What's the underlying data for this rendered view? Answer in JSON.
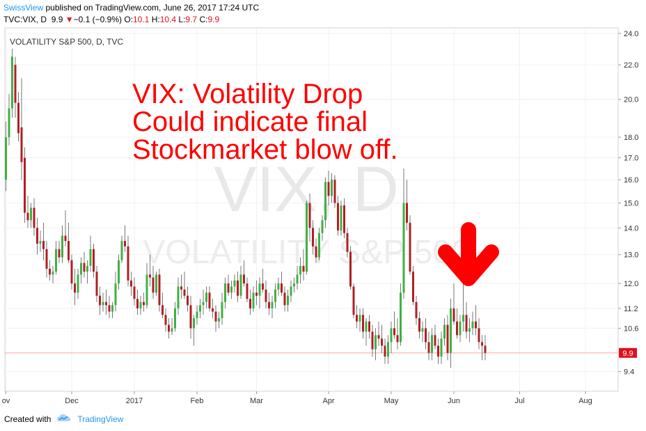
{
  "header": {
    "author": "SwissView",
    "published_text": " published on TradingView.com, June 26, 2017 17:24 UTC",
    "symbol": "TVC:VIX, D",
    "last": "9.9",
    "change": "−0.1 (−0.9%)",
    "o_label": "O:",
    "o_val": "10.1",
    "h_label": "H:",
    "h_val": "10.4",
    "l_label": "L:",
    "l_val": "9.7",
    "c_label": "C:",
    "c_val": "9.9"
  },
  "footer": {
    "created_with": "Created with",
    "brand": "TradingView"
  },
  "colors": {
    "up": "#3db142",
    "down": "#b11e24",
    "annotation": "#ff0000",
    "price_line": "#f4a7a7",
    "price_tag": "#e0111c"
  },
  "chart_data": {
    "type": "candlestick",
    "title": "VOLATILITY S&P 500, D, TVC",
    "watermark_symbol": "VIX, D",
    "watermark_name": "VOLATILITY S&P 500",
    "annotation": [
      "VIX: Volatility Drop",
      "Could indicate final",
      "Stockmarket blow off."
    ],
    "annotation_arrow": "down-arrow",
    "y_scale": "log",
    "ylim": [
      8.9,
      24.0
    ],
    "y_ticks": [
      "9.4",
      "10.6",
      "11.2",
      "12.0",
      "13.0",
      "14.0",
      "15.0",
      "16.0",
      "17.0",
      "18.0",
      "20.0",
      "22.0",
      "24.0"
    ],
    "x_labels": [
      {
        "label": "ov",
        "idx": 0
      },
      {
        "label": "Dec",
        "idx": 21
      },
      {
        "label": "2017",
        "idx": 41
      },
      {
        "label": "Feb",
        "idx": 61
      },
      {
        "label": "Mar",
        "idx": 80
      },
      {
        "label": "Apr",
        "idx": 103
      },
      {
        "label": "May",
        "idx": 123
      },
      {
        "label": "Jun",
        "idx": 143
      },
      {
        "label": "Jul",
        "idx": 164
      },
      {
        "label": "Aug",
        "idx": 185
      }
    ],
    "last_price": "9.9",
    "candles": [
      [
        16.0,
        18.8,
        15.5,
        18.0
      ],
      [
        18.0,
        20.3,
        17.6,
        19.5
      ],
      [
        19.5,
        23.0,
        19.0,
        22.5
      ],
      [
        22.0,
        22.5,
        19.0,
        19.8
      ],
      [
        19.8,
        20.4,
        17.8,
        18.2
      ],
      [
        18.5,
        21.2,
        16.0,
        16.8
      ],
      [
        17.0,
        17.5,
        14.2,
        14.6
      ],
      [
        14.6,
        15.3,
        14.0,
        14.3
      ],
      [
        14.3,
        15.0,
        14.0,
        14.8
      ],
      [
        14.8,
        15.2,
        13.7,
        14.0
      ],
      [
        14.0,
        14.4,
        13.0,
        13.4
      ],
      [
        13.4,
        13.9,
        13.1,
        13.5
      ],
      [
        13.5,
        14.2,
        12.8,
        13.2
      ],
      [
        13.2,
        13.5,
        12.2,
        12.5
      ],
      [
        12.5,
        12.8,
        12.1,
        12.3
      ],
      [
        12.3,
        12.6,
        12.0,
        12.4
      ],
      [
        12.4,
        13.5,
        12.3,
        13.2
      ],
      [
        13.2,
        13.5,
        12.7,
        12.9
      ],
      [
        12.9,
        14.1,
        12.7,
        13.7
      ],
      [
        13.7,
        14.7,
        13.3,
        13.5
      ],
      [
        13.5,
        14.2,
        12.7,
        12.8
      ],
      [
        12.8,
        13.0,
        11.8,
        12.0
      ],
      [
        12.0,
        12.5,
        11.3,
        11.7
      ],
      [
        11.7,
        12.5,
        11.5,
        12.3
      ],
      [
        12.3,
        12.9,
        12.0,
        12.7
      ],
      [
        12.7,
        13.1,
        12.2,
        12.4
      ],
      [
        12.4,
        12.8,
        12.0,
        12.6
      ],
      [
        12.6,
        13.7,
        12.4,
        13.2
      ],
      [
        13.2,
        13.4,
        12.2,
        12.4
      ],
      [
        12.4,
        12.6,
        11.4,
        11.6
      ],
      [
        11.6,
        11.9,
        11.0,
        11.3
      ],
      [
        11.3,
        11.7,
        11.1,
        11.4
      ],
      [
        11.4,
        11.8,
        11.0,
        11.3
      ],
      [
        11.3,
        11.6,
        10.9,
        11.1
      ],
      [
        11.1,
        11.4,
        10.9,
        11.3
      ],
      [
        11.3,
        12.4,
        11.1,
        12.0
      ],
      [
        12.0,
        13.0,
        11.8,
        12.8
      ],
      [
        12.8,
        13.7,
        12.7,
        13.5
      ],
      [
        13.5,
        14.1,
        13.1,
        13.3
      ],
      [
        13.3,
        13.7,
        11.9,
        12.1
      ],
      [
        12.1,
        12.4,
        11.6,
        11.9
      ],
      [
        11.9,
        12.2,
        11.3,
        11.5
      ],
      [
        11.5,
        11.8,
        11.0,
        11.2
      ],
      [
        11.2,
        11.6,
        11.0,
        11.4
      ],
      [
        11.4,
        11.7,
        11.1,
        11.3
      ],
      [
        11.3,
        12.7,
        11.2,
        12.3
      ],
      [
        12.3,
        13.0,
        11.9,
        12.2
      ],
      [
        12.2,
        12.6,
        11.5,
        11.7
      ],
      [
        11.7,
        12.4,
        11.6,
        12.3
      ],
      [
        12.3,
        12.5,
        11.1,
        11.3
      ],
      [
        11.3,
        11.7,
        10.9,
        11.0
      ],
      [
        11.0,
        11.2,
        10.5,
        10.7
      ],
      [
        10.7,
        10.9,
        10.3,
        10.5
      ],
      [
        10.5,
        10.9,
        10.4,
        10.6
      ],
      [
        10.6,
        11.4,
        10.5,
        11.2
      ],
      [
        11.2,
        12.2,
        11.0,
        11.9
      ],
      [
        11.9,
        12.3,
        11.5,
        11.8
      ],
      [
        11.8,
        12.4,
        11.5,
        11.6
      ],
      [
        11.6,
        11.9,
        11.1,
        11.3
      ],
      [
        11.3,
        11.6,
        10.3,
        10.6
      ],
      [
        10.6,
        11.0,
        10.1,
        10.9
      ],
      [
        10.9,
        11.3,
        10.7,
        11.1
      ],
      [
        11.1,
        11.5,
        10.9,
        11.3
      ],
      [
        11.3,
        11.8,
        11.0,
        11.4
      ],
      [
        11.4,
        11.9,
        11.2,
        11.7
      ],
      [
        11.7,
        11.9,
        11.1,
        11.2
      ],
      [
        11.2,
        11.5,
        10.9,
        11.1
      ],
      [
        11.1,
        11.3,
        10.5,
        10.8
      ],
      [
        10.8,
        11.1,
        10.6,
        10.9
      ],
      [
        10.9,
        11.7,
        10.7,
        11.4
      ],
      [
        11.4,
        12.2,
        11.2,
        12.0
      ],
      [
        12.0,
        12.3,
        11.6,
        11.7
      ],
      [
        11.7,
        12.1,
        11.5,
        11.9
      ],
      [
        11.9,
        12.3,
        11.7,
        12.1
      ],
      [
        12.1,
        12.4,
        11.4,
        11.6
      ],
      [
        11.6,
        12.6,
        11.5,
        12.3
      ],
      [
        12.3,
        12.8,
        11.9,
        12.0
      ],
      [
        12.0,
        12.2,
        11.4,
        11.5
      ],
      [
        11.5,
        11.8,
        11.0,
        11.2
      ],
      [
        11.2,
        11.9,
        11.1,
        11.7
      ],
      [
        11.7,
        12.1,
        11.3,
        11.6
      ],
      [
        11.6,
        12.2,
        11.2,
        12.0
      ],
      [
        12.0,
        12.5,
        11.7,
        11.8
      ],
      [
        11.8,
        12.1,
        11.2,
        11.4
      ],
      [
        11.4,
        11.7,
        11.0,
        11.2
      ],
      [
        11.2,
        11.6,
        10.9,
        11.4
      ],
      [
        11.4,
        12.0,
        11.2,
        11.8
      ],
      [
        11.8,
        12.2,
        11.6,
        12.0
      ],
      [
        12.0,
        12.4,
        11.6,
        11.7
      ],
      [
        11.7,
        11.9,
        11.1,
        11.3
      ],
      [
        11.3,
        11.8,
        11.1,
        11.6
      ],
      [
        11.6,
        12.1,
        11.4,
        11.9
      ],
      [
        11.9,
        12.2,
        11.7,
        12.0
      ],
      [
        12.0,
        12.6,
        11.8,
        12.3
      ],
      [
        12.3,
        12.9,
        12.0,
        12.6
      ],
      [
        12.6,
        13.2,
        12.1,
        12.4
      ],
      [
        12.4,
        15.1,
        12.3,
        15.0
      ],
      [
        15.0,
        15.4,
        13.5,
        14.0
      ],
      [
        14.0,
        14.3,
        13.0,
        13.3
      ],
      [
        13.3,
        13.6,
        12.7,
        12.9
      ],
      [
        12.9,
        14.0,
        12.8,
        13.8
      ],
      [
        13.8,
        14.5,
        13.5,
        14.3
      ],
      [
        14.3,
        16.1,
        14.0,
        15.9
      ],
      [
        15.9,
        16.4,
        14.9,
        15.3
      ],
      [
        15.3,
        16.3,
        15.0,
        16.0
      ],
      [
        16.0,
        16.2,
        14.8,
        15.0
      ],
      [
        15.0,
        15.3,
        13.7,
        13.9
      ],
      [
        13.9,
        15.1,
        13.7,
        14.9
      ],
      [
        14.9,
        15.2,
        13.6,
        13.8
      ],
      [
        13.8,
        14.0,
        12.9,
        13.1
      ],
      [
        13.1,
        13.3,
        11.8,
        11.9
      ],
      [
        11.9,
        12.0,
        10.9,
        11.0
      ],
      [
        11.0,
        11.3,
        10.6,
        10.8
      ],
      [
        10.8,
        11.2,
        10.5,
        11.0
      ],
      [
        11.0,
        11.2,
        10.3,
        10.5
      ],
      [
        10.5,
        10.9,
        10.1,
        10.8
      ],
      [
        10.8,
        11.0,
        10.3,
        10.5
      ],
      [
        10.5,
        10.7,
        9.8,
        10.0
      ],
      [
        10.0,
        10.6,
        9.7,
        10.4
      ],
      [
        10.4,
        10.8,
        10.1,
        10.3
      ],
      [
        10.3,
        10.7,
        9.9,
        10.1
      ],
      [
        10.1,
        10.3,
        9.6,
        9.8
      ],
      [
        9.8,
        10.4,
        9.6,
        10.2
      ],
      [
        10.2,
        10.8,
        9.9,
        10.6
      ],
      [
        10.6,
        11.1,
        10.3,
        10.4
      ],
      [
        10.4,
        10.9,
        10.0,
        10.2
      ],
      [
        10.2,
        12.0,
        10.1,
        11.7
      ],
      [
        11.7,
        16.5,
        11.5,
        15.0
      ],
      [
        15.0,
        16.0,
        13.9,
        14.2
      ],
      [
        14.2,
        14.5,
        12.3,
        12.4
      ],
      [
        12.4,
        12.6,
        11.3,
        11.4
      ],
      [
        11.4,
        11.6,
        10.7,
        10.9
      ],
      [
        10.9,
        11.1,
        10.3,
        10.5
      ],
      [
        10.5,
        10.8,
        10.2,
        10.6
      ],
      [
        10.6,
        10.9,
        10.0,
        10.2
      ],
      [
        10.2,
        10.5,
        9.7,
        9.9
      ],
      [
        9.9,
        10.6,
        9.7,
        10.4
      ],
      [
        10.4,
        10.7,
        10.0,
        10.1
      ],
      [
        10.1,
        10.3,
        9.6,
        9.8
      ],
      [
        9.8,
        10.5,
        9.6,
        10.3
      ],
      [
        10.3,
        10.9,
        10.1,
        10.7
      ],
      [
        10.7,
        11.0,
        9.7,
        9.9
      ],
      [
        9.9,
        11.5,
        9.5,
        11.2
      ],
      [
        11.2,
        12.0,
        10.7,
        10.8
      ],
      [
        10.8,
        11.2,
        10.3,
        10.4
      ],
      [
        10.4,
        11.0,
        10.2,
        10.8
      ],
      [
        10.8,
        12.1,
        10.5,
        11.0
      ],
      [
        11.0,
        11.4,
        10.3,
        10.5
      ],
      [
        10.5,
        10.9,
        10.2,
        10.6
      ],
      [
        10.6,
        11.1,
        10.4,
        10.8
      ],
      [
        10.8,
        11.3,
        10.4,
        10.6
      ],
      [
        10.6,
        10.9,
        10.0,
        10.2
      ],
      [
        10.2,
        10.4,
        9.7,
        10.1
      ],
      [
        10.1,
        10.4,
        9.7,
        9.9
      ]
    ]
  }
}
